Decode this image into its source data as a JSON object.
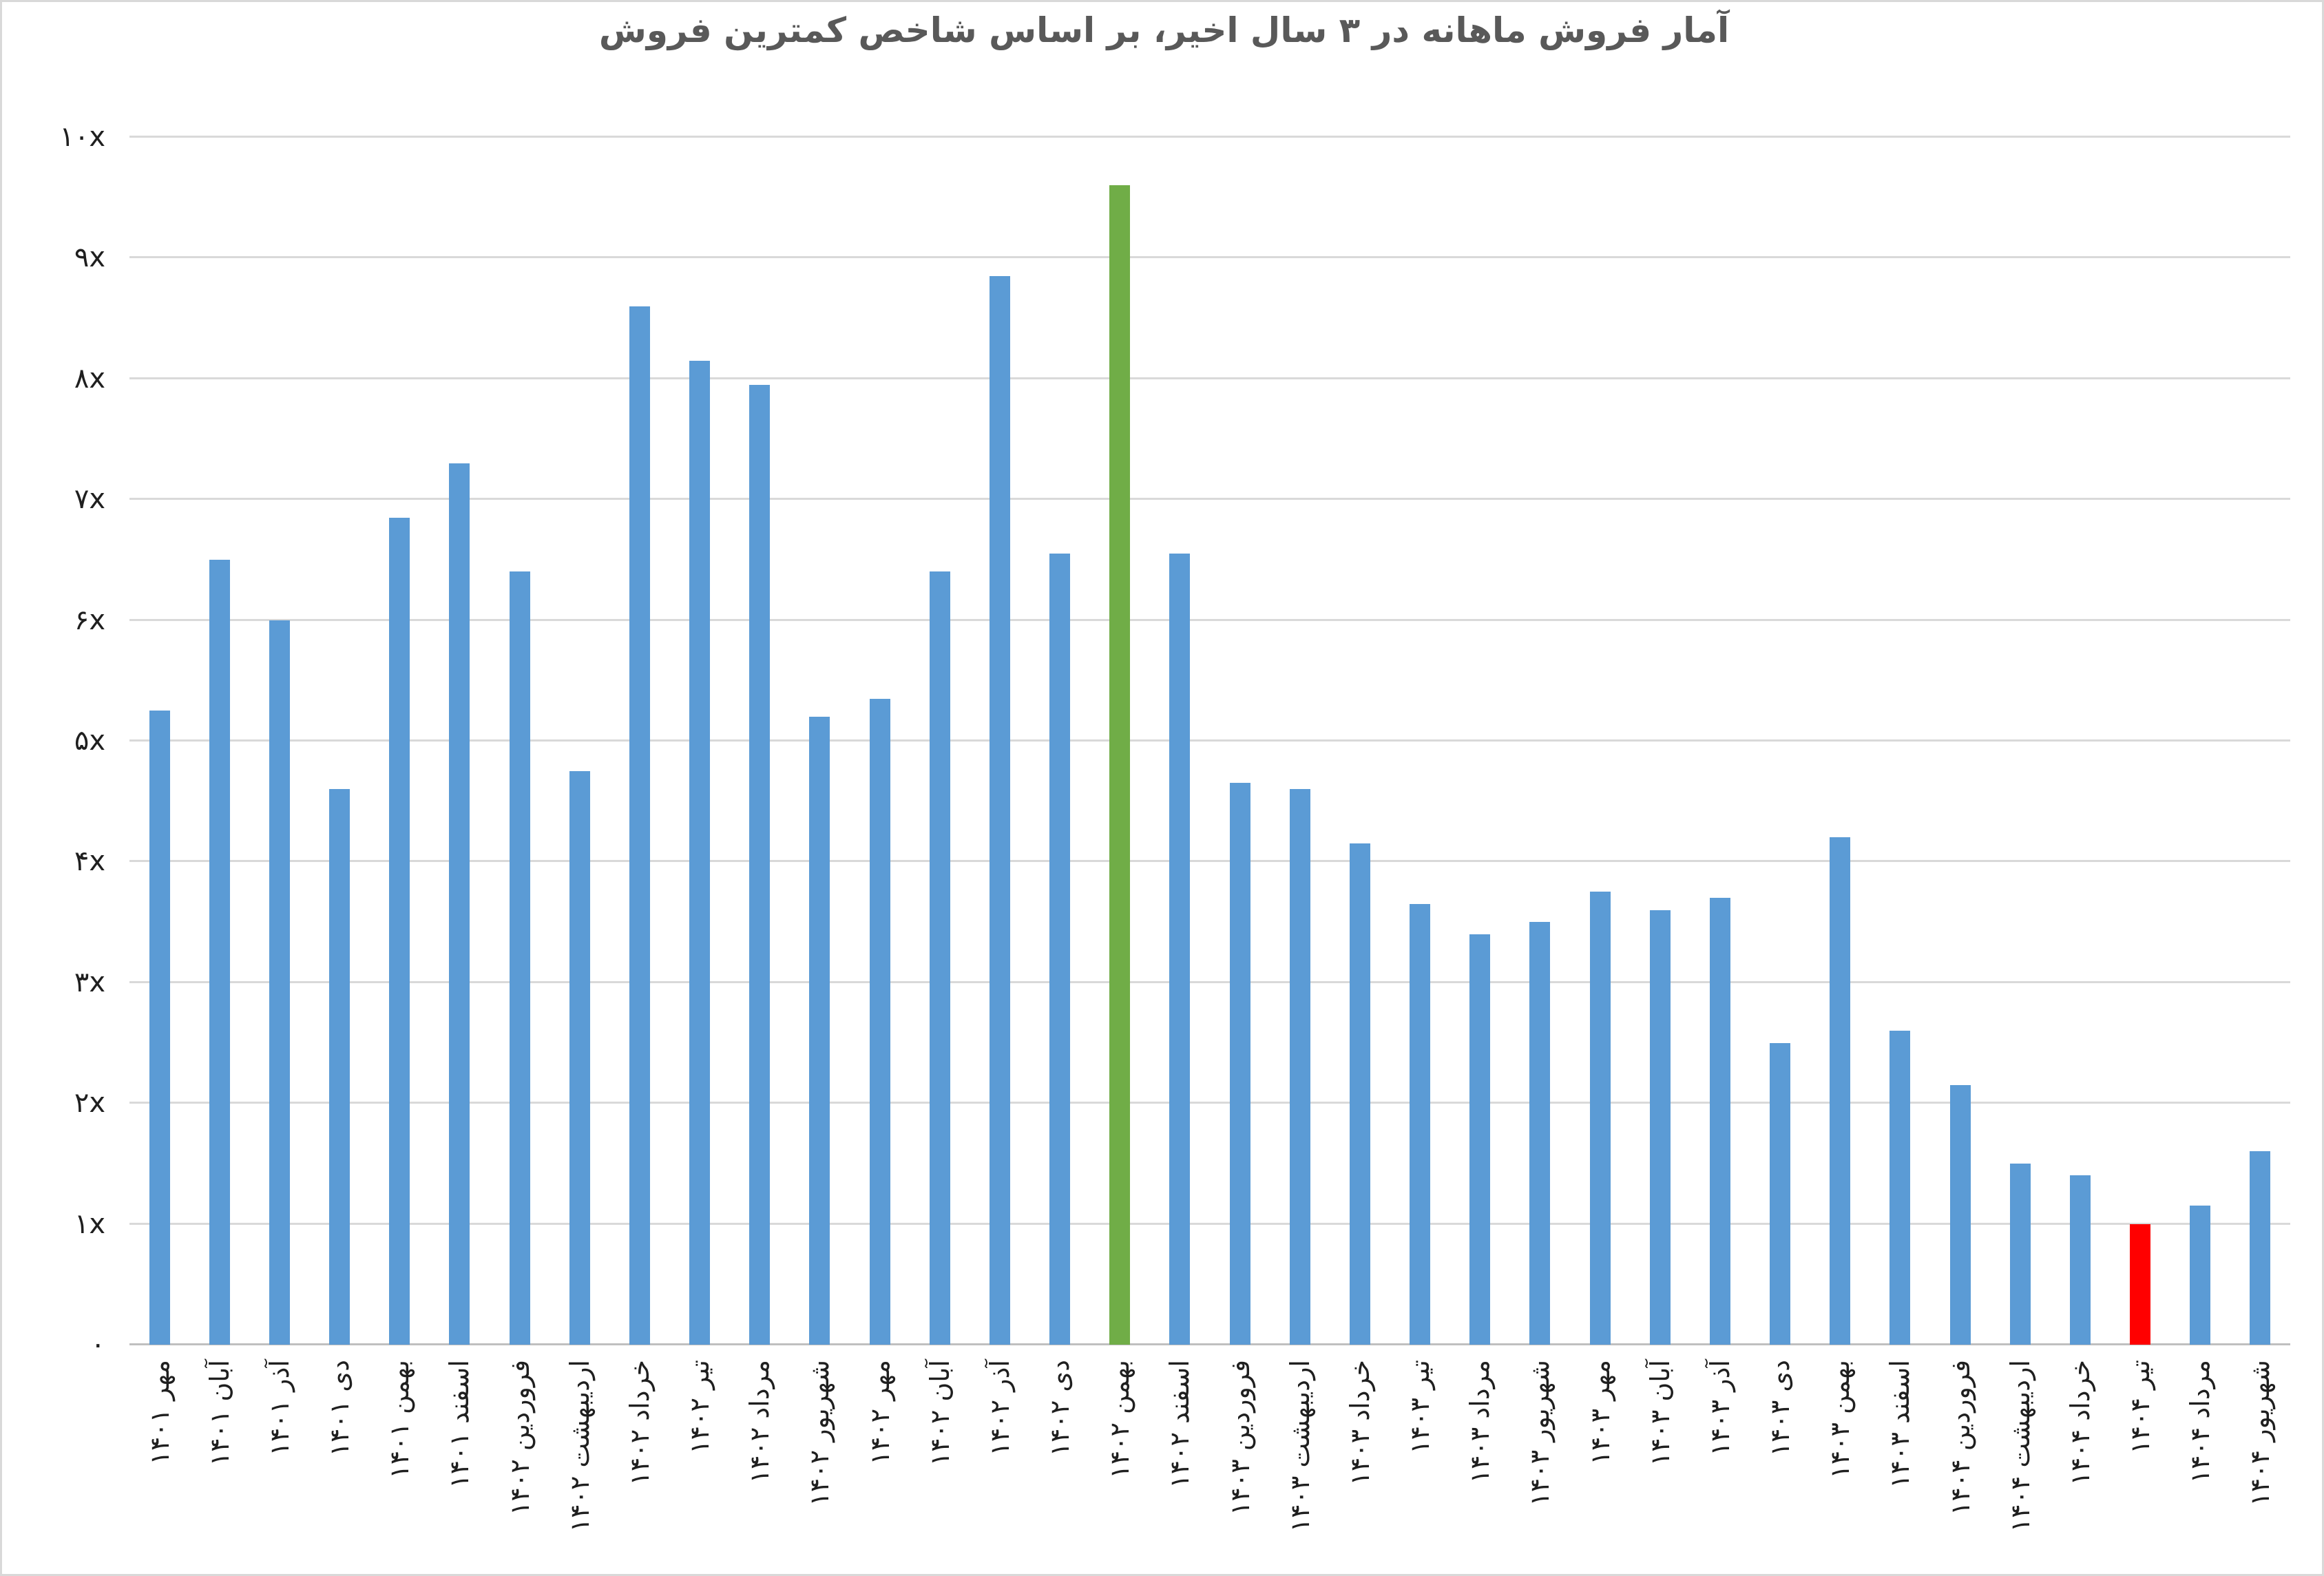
{
  "title": "آمار فروش ماهانه در ۳ سال اخیر، بر اساس شاخص کمترین فروش",
  "y_axis": {
    "tick_labels_bottom_to_top": [
      "۰",
      "۱x",
      "۲x",
      "۳x",
      "۴x",
      "۵x",
      "۶x",
      "۷x",
      "۸x",
      "۹x",
      "۱۰x"
    ],
    "max_units": 10
  },
  "colors": {
    "bar_default": "#5B9BD5",
    "bar_max_highlight": "#70AD47",
    "bar_min_highlight": "#FF0000",
    "gridline": "#D9D9D9",
    "axis_line": "#BFBFBF",
    "title_text": "#595959",
    "tick_text": "#1F1F1F"
  },
  "chart_data": {
    "type": "bar",
    "title": "آمار فروش ماهانه در ۳ سال اخیر، بر اساس شاخص کمترین فروش",
    "xlabel": "",
    "ylabel": "",
    "ylim": [
      0,
      10
    ],
    "grid": true,
    "legend": false,
    "unit_suffix": "x",
    "categories": [
      "مهر ۱۴۰۱",
      "آبان ۱۴۰۱",
      "آذر ۱۴۰۱",
      "دی ۱۴۰۱",
      "بهمن ۱۴۰۱",
      "اسفند ۱۴۰۱",
      "فروردین ۱۴۰۲",
      "اردیبهشت ۱۴۰۲",
      "خرداد ۱۴۰۲",
      "تیر ۱۴۰۲",
      "مرداد ۱۴۰۲",
      "شهریور ۱۴۰۲",
      "مهر ۱۴۰۲",
      "آبان ۱۴۰۲",
      "آذر ۱۴۰۲",
      "دی ۱۴۰۲",
      "بهمن ۱۴۰۲",
      "اسفند ۱۴۰۲",
      "فروردین ۱۴۰۳",
      "اردیبهشت ۱۴۰۳",
      "خرداد ۱۴۰۳",
      "تیر ۱۴۰۳",
      "مرداد ۱۴۰۳",
      "شهریور ۱۴۰۳",
      "مهر ۱۴۰۳",
      "آبان ۱۴۰۳",
      "آذر ۱۴۰۳",
      "دی ۱۴۰۳",
      "بهمن ۱۴۰۳",
      "اسفند ۱۴۰۳",
      "فروردین ۱۴۰۴",
      "اردیبهشت ۱۴۰۴",
      "خرداد ۱۴۰۴",
      "تیر ۱۴۰۴",
      "مرداد ۱۴۰۴",
      "شهریور ۱۴۰۴"
    ],
    "values": [
      5.25,
      6.5,
      6.0,
      4.6,
      6.85,
      7.3,
      6.4,
      4.75,
      8.6,
      8.15,
      7.95,
      5.2,
      5.35,
      6.4,
      8.85,
      6.55,
      9.6,
      6.55,
      4.65,
      4.6,
      4.15,
      3.65,
      3.4,
      3.5,
      3.75,
      3.6,
      3.7,
      2.5,
      4.2,
      2.6,
      2.15,
      1.5,
      1.4,
      1.0,
      1.15,
      1.6
    ],
    "highlight_max_index": 16,
    "highlight_min_index": 33
  }
}
